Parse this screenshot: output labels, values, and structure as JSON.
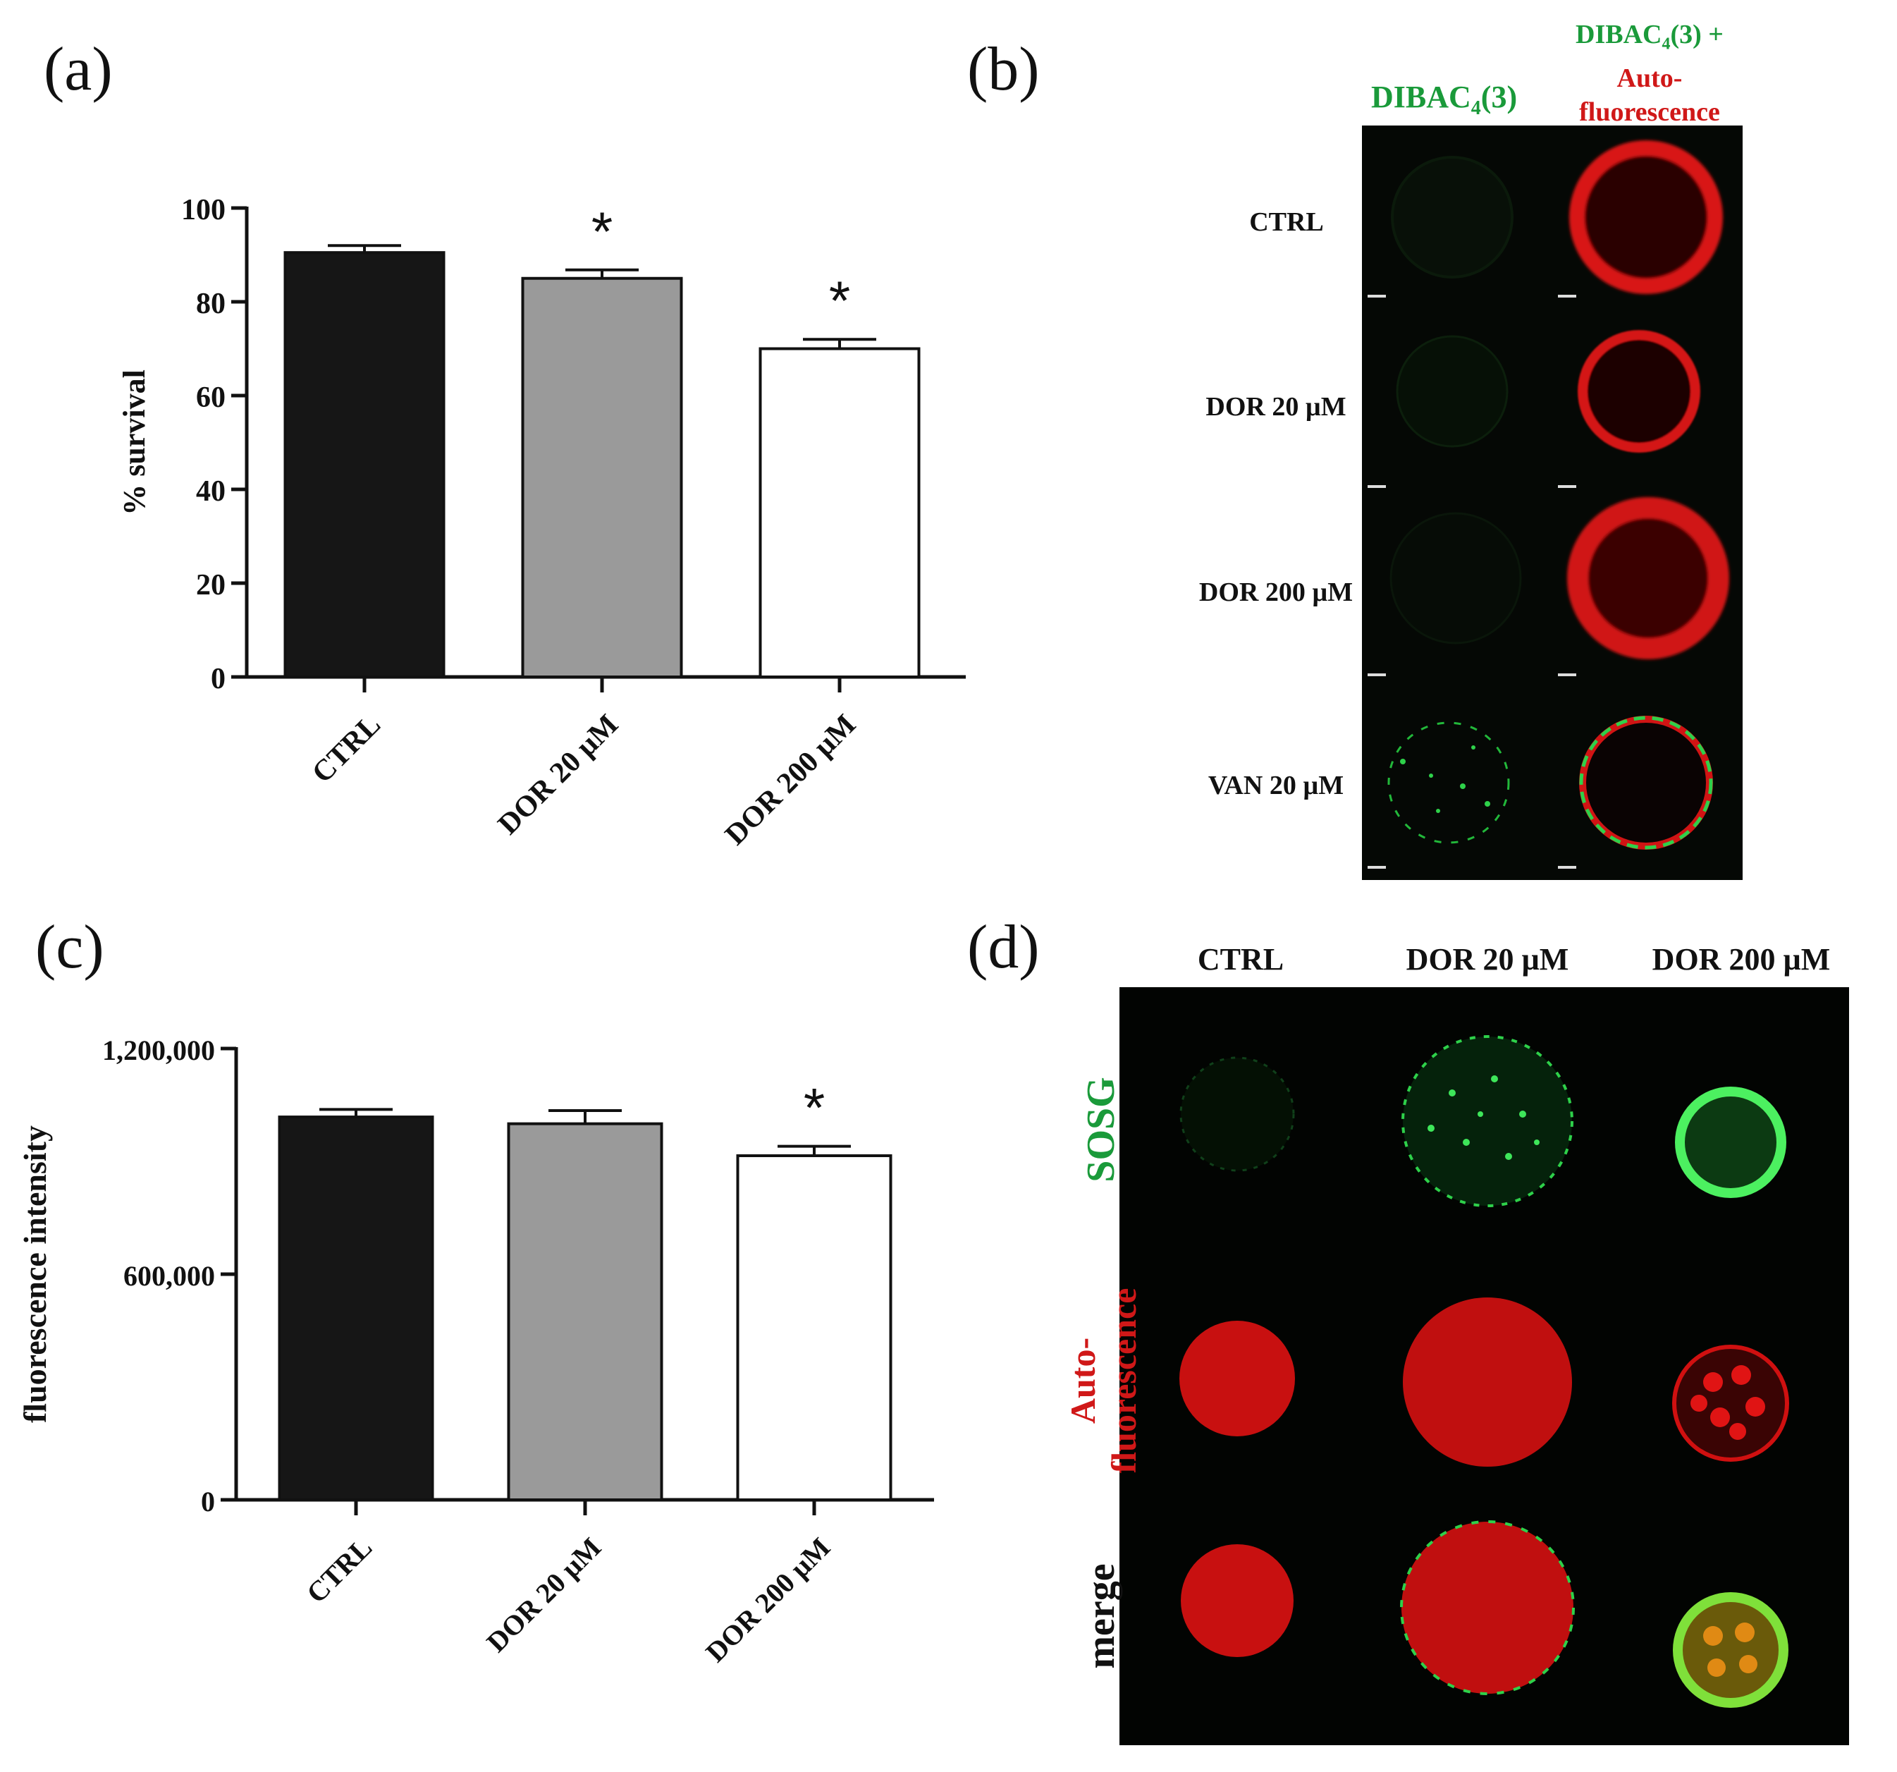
{
  "panels": {
    "a": {
      "label": "(a)"
    },
    "b": {
      "label": "(b)",
      "col_dibac": {
        "base": "DIBAC",
        "sub": "4",
        "tail": "(3)"
      },
      "col_merge": {
        "line1_base": "DIBAC",
        "line1_sub": "4",
        "line1_tail": "(3) +",
        "line2": "Auto-",
        "line3": "fluorescence"
      },
      "rows": [
        "CTRL",
        "DOR 20 µM",
        "DOR 200 µM",
        "VAN 20 µM"
      ]
    },
    "c": {
      "label": "(c)"
    },
    "d": {
      "label": "(d)",
      "columns": [
        "CTRL",
        "DOR 20 µM",
        "DOR 200 µM"
      ],
      "rows": {
        "sosg": "SOSG",
        "auto_line1": "Auto-",
        "auto_line2": "fluorescence",
        "merge": "merge"
      }
    }
  },
  "colors": {
    "green": "#1a9a3a",
    "red": "#d01818",
    "bar_black": "#161616",
    "bar_gray": "#9a9a9a",
    "bar_white": "#ffffff"
  },
  "chart_data": [
    {
      "id": "a",
      "type": "bar",
      "categories": [
        "CTRL",
        "DOR 20 µM",
        "DOR 200 µM"
      ],
      "values": [
        90.5,
        85,
        70
      ],
      "errors": [
        1.5,
        1.8,
        2
      ],
      "significance": [
        "",
        "*",
        "*"
      ],
      "ylabel": "% survival",
      "ylim": [
        0,
        100
      ],
      "yticks": [
        "0",
        "20",
        "40",
        "60",
        "80",
        "100"
      ],
      "ytick_values": [
        0,
        20,
        40,
        60,
        80,
        100
      ]
    },
    {
      "id": "c",
      "type": "bar",
      "categories": [
        "CTRL",
        "DOR 20 µM",
        "DOR 200 µM"
      ],
      "values": [
        1018000,
        1000000,
        915000
      ],
      "errors": [
        20000,
        35000,
        25000
      ],
      "significance": [
        "",
        "",
        "*"
      ],
      "ylabel": "fluorescence intensity",
      "ylim": [
        0,
        1200000
      ],
      "yticks": [
        "0",
        "600,000",
        "1,200,000"
      ],
      "ytick_values": [
        0,
        600000,
        1200000
      ]
    }
  ]
}
